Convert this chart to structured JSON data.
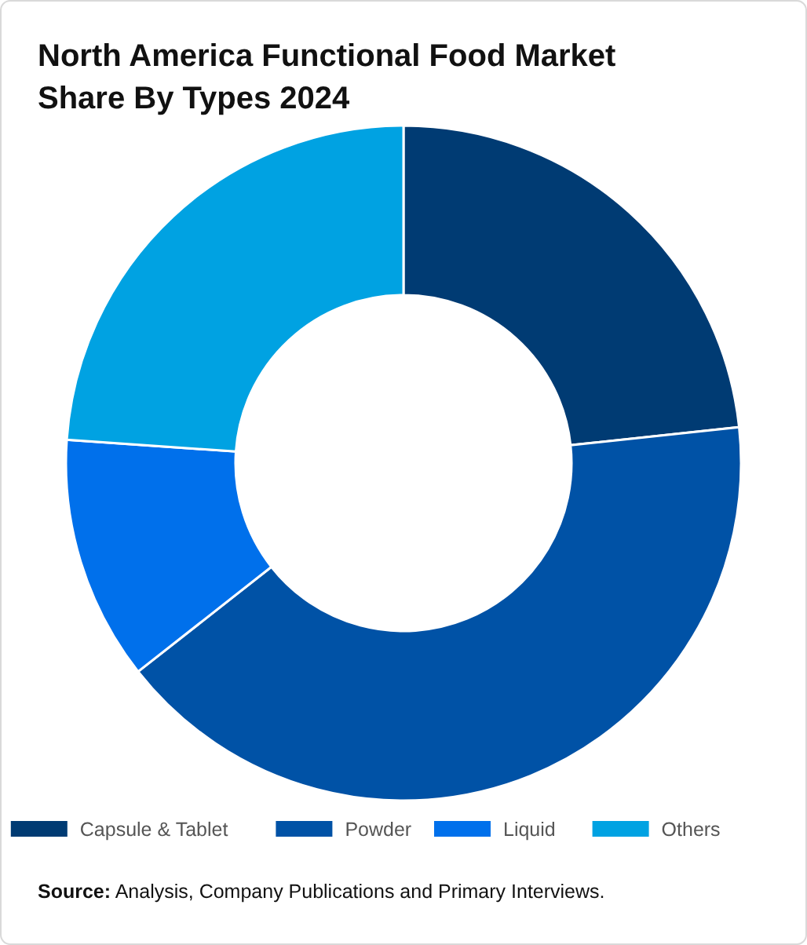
{
  "chart_data": {
    "type": "donut",
    "title": "North America Functional Food Market Share By Types 2024",
    "categories": [
      "Capsule & Tablet",
      "Powder",
      "Liquid",
      "Others"
    ],
    "values": [
      23.3,
      41.1,
      11.7,
      23.9
    ],
    "colors": [
      "#003b73",
      "#0052a6",
      "#0070eb",
      "#00a2e2"
    ],
    "legend": "bottom",
    "annotations": [
      "Source: Analysis, Company Publications and Primary Interviews."
    ]
  }
}
